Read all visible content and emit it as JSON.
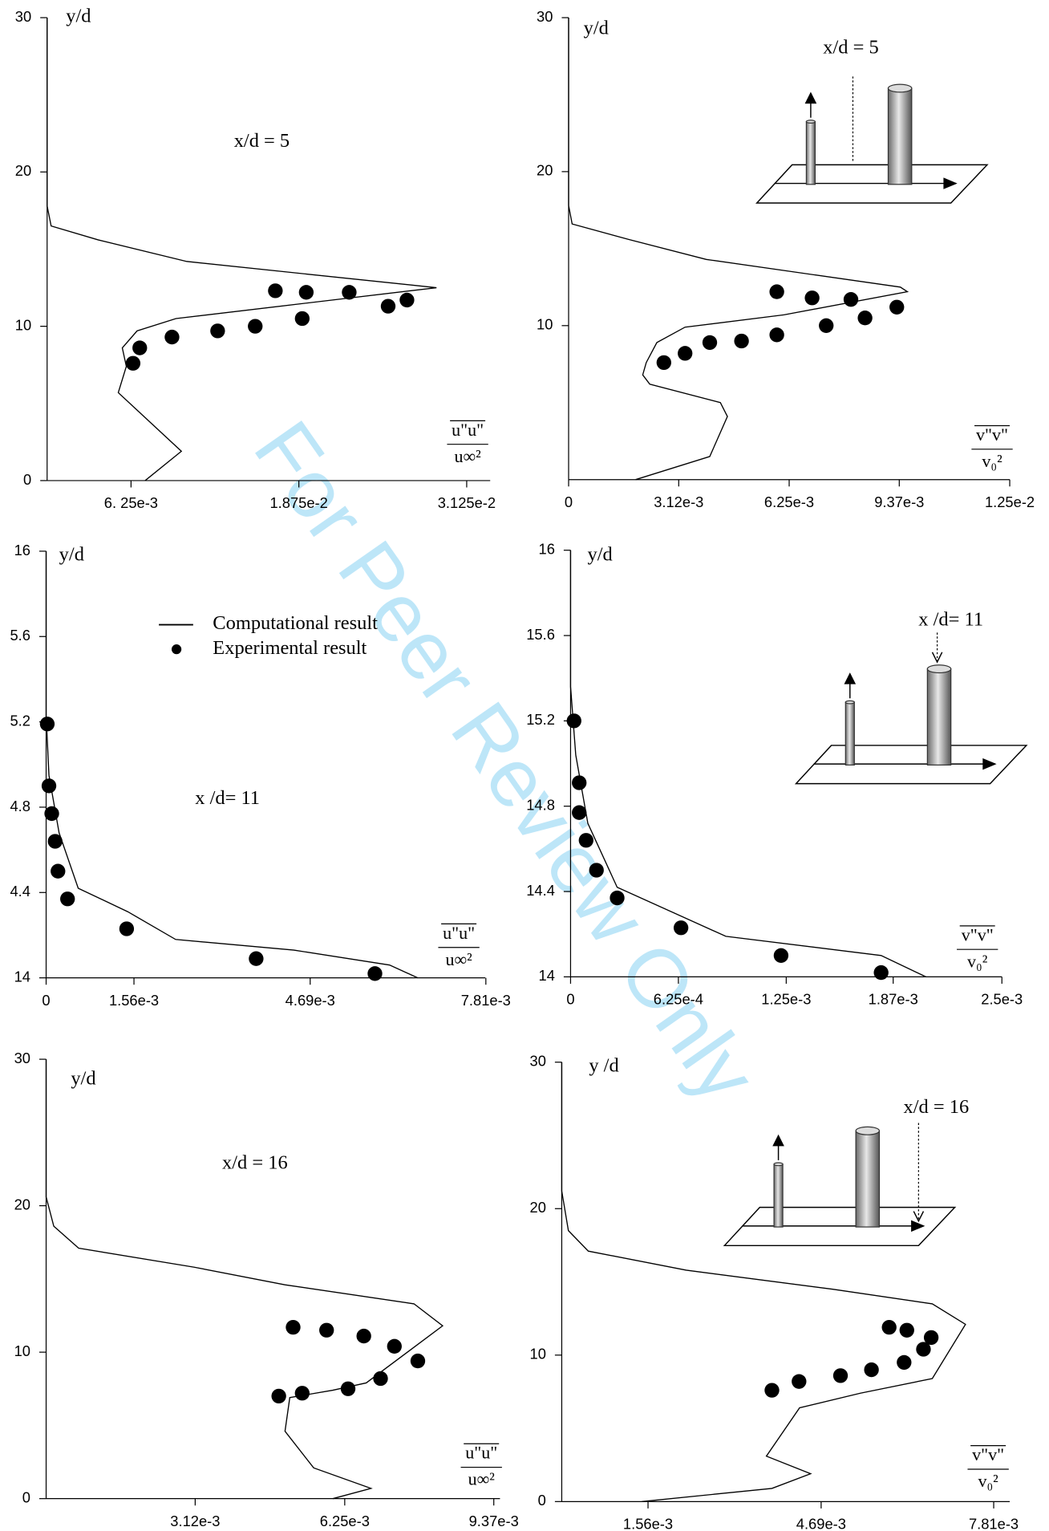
{
  "watermark": "For Peer Review Only",
  "chart_data": [
    {
      "type": "line",
      "annotation": "x/d = 5",
      "y_label": "y/d",
      "x_label": {
        "numerator": "u\"u\"",
        "denominator": "u∞²"
      },
      "xlim": [
        0,
        0.033
      ],
      "ylim": [
        0,
        30
      ],
      "xticks": [
        {
          "value": 0.00625,
          "label": "6. 25e-3"
        },
        {
          "value": 0.01875,
          "label": "1.875e-2"
        },
        {
          "value": 0.03125,
          "label": "3.125e-2"
        }
      ],
      "yticks": [
        0,
        10,
        20,
        30
      ],
      "series": [
        {
          "type": "line",
          "color": "#000000",
          "x": [
            0,
            0,
            0.0003,
            0.0038,
            0.0104,
            0.029,
            0.0096,
            0.0067,
            0.0056,
            0.0059,
            0.0053,
            0.01,
            0.0073
          ],
          "y": [
            30,
            17.8,
            16.5,
            15.6,
            14.2,
            12.5,
            10.5,
            9.7,
            8.6,
            7.4,
            5.7,
            1.9,
            0
          ]
        },
        {
          "type": "scatter",
          "color": "#000000",
          "x": [
            0.0064,
            0.0069,
            0.0093,
            0.0127,
            0.0155,
            0.019,
            0.017,
            0.0193,
            0.0225,
            0.0254,
            0.0268
          ],
          "y": [
            7.6,
            8.6,
            9.3,
            9.7,
            10,
            10.5,
            12.3,
            12.2,
            12.2,
            11.3,
            11.7
          ]
        }
      ]
    },
    {
      "type": "line",
      "annotation": "x/d = 5",
      "y_label": "y/d",
      "x_label": {
        "numerator": "v\"v\"",
        "denominator": "v₀²"
      },
      "xlim": [
        0,
        0.0125
      ],
      "ylim": [
        0,
        30
      ],
      "xticks": [
        0,
        {
          "value": 0.00312,
          "label": "3.12e-3"
        },
        {
          "value": 0.00625,
          "label": "6.25e-3"
        },
        {
          "value": 0.00937,
          "label": "9.37e-3"
        },
        {
          "value": 0.0125,
          "label": "1.25e-2"
        }
      ],
      "yticks": [
        10,
        20,
        30
      ],
      "series": [
        {
          "type": "line",
          "color": "#000000",
          "x": [
            0,
            0,
            0.0001,
            0.0017,
            0.0039,
            0.0094,
            0.0096,
            0.0061,
            0.0033,
            0.0025,
            0.0022,
            0.0021,
            0.0023,
            0.0043,
            0.0045,
            0.004,
            0.0019
          ],
          "y": [
            30,
            17.8,
            16.6,
            15.6,
            14.3,
            12.5,
            12.2,
            10.7,
            9.9,
            8.9,
            7.6,
            6.8,
            6.2,
            5,
            4.1,
            1.5,
            0
          ]
        },
        {
          "type": "scatter",
          "color": "#000000",
          "x": [
            0.0027,
            0.0033,
            0.004,
            0.0049,
            0.0059,
            0.0073,
            0.0084,
            0.0093,
            0.008,
            0.0069,
            0.0059
          ],
          "y": [
            7.6,
            8.2,
            8.9,
            9,
            9.4,
            10,
            10.5,
            11.2,
            11.7,
            11.8,
            12.2
          ]
        }
      ]
    },
    {
      "type": "line",
      "annotation": "x /d= 11",
      "y_label": "y/d",
      "x_label": {
        "numerator": "u\"u\"",
        "denominator": "u∞²"
      },
      "xlim": [
        0,
        0.0078
      ],
      "ylim": [
        14,
        16
      ],
      "xticks": [
        0,
        {
          "value": 0.00156,
          "label": "1.56e-3"
        },
        {
          "value": 0.00469,
          "label": "4.69e-3"
        },
        {
          "value": 0.00781,
          "label": "7.81e-3"
        }
      ],
      "yticks": [
        14,
        {
          "value": 14.4,
          "label": "4.4"
        },
        {
          "value": 14.8,
          "label": "4.8"
        },
        {
          "value": 15.2,
          "label": "5.2"
        },
        {
          "value": 15.6,
          "label": "5.6"
        },
        16
      ],
      "series": [
        {
          "name": "Computational result",
          "type": "line",
          "color": "#000000",
          "x": [
            0,
            0,
            5e-05,
            0.00023,
            0.00057,
            0.00145,
            0.0023,
            0.0044,
            0.0061,
            0.0066
          ],
          "y": [
            16,
            15.23,
            14.95,
            14.68,
            14.42,
            14.31,
            14.18,
            14.13,
            14.06,
            14
          ]
        },
        {
          "name": "Experimental result",
          "type": "scatter",
          "color": "#000000",
          "x": [
            2e-05,
            5e-05,
            0.0001,
            0.00016,
            0.00021,
            0.00038,
            0.00143,
            0.00373,
            0.00584
          ],
          "y": [
            15.19,
            14.9,
            14.77,
            14.64,
            14.5,
            14.37,
            14.23,
            14.09,
            14.02
          ]
        }
      ]
    },
    {
      "type": "line",
      "annotation": "x /d= 11",
      "y_label": "y/d",
      "x_label": {
        "numerator": "v\"v\"",
        "denominator": "v₀²"
      },
      "xlim": [
        0,
        0.0025
      ],
      "ylim": [
        14,
        16
      ],
      "xticks": [
        0,
        {
          "value": 0.000625,
          "label": "6.25e-4"
        },
        {
          "value": 0.00125,
          "label": "1.25e-3"
        },
        {
          "value": 0.00187,
          "label": "1.87e-3"
        },
        {
          "value": 0.0025,
          "label": "2.5e-3"
        }
      ],
      "yticks": [
        14,
        14.4,
        14.8,
        15.2,
        15.6,
        16
      ],
      "series": [
        {
          "type": "line",
          "color": "#000000",
          "x": [
            0,
            0,
            3e-05,
            0.0001,
            0.00027,
            0.0009,
            0.0018,
            0.00206
          ],
          "y": [
            16,
            15.36,
            15.04,
            14.72,
            14.42,
            14.19,
            14.1,
            14
          ]
        },
        {
          "type": "scatter",
          "color": "#000000",
          "x": [
            2e-05,
            5e-05,
            5e-05,
            9e-05,
            0.00015,
            0.00027,
            0.00064,
            0.00122,
            0.0018
          ],
          "y": [
            15.2,
            14.91,
            14.77,
            14.64,
            14.5,
            14.37,
            14.23,
            14.1,
            14.02
          ]
        }
      ]
    },
    {
      "type": "line",
      "annotation": "x/d = 16",
      "y_label": "y/d",
      "x_label": {
        "numerator": "u\"u\"",
        "denominator": "u∞²"
      },
      "xlim": [
        0,
        0.0095
      ],
      "ylim": [
        0,
        30
      ],
      "xticks": [
        {
          "value": 0.00312,
          "label": "3.12e-3"
        },
        {
          "value": 0.00625,
          "label": "6.25e-3"
        },
        {
          "value": 0.00937,
          "label": "9.37e-3"
        }
      ],
      "yticks": [
        0,
        10,
        20,
        30
      ],
      "series": [
        {
          "type": "line",
          "color": "#000000",
          "x": [
            0,
            0,
            0.00016,
            0.00068,
            0.0031,
            0.005,
            0.0077,
            0.0083,
            0.0067,
            0.006,
            0.0051,
            0.005,
            0.0056,
            0.0068,
            0.006
          ],
          "y": [
            30,
            20.6,
            18.6,
            17.1,
            15.8,
            14.6,
            13.3,
            11.8,
            7.9,
            7.4,
            6.9,
            4.6,
            2.1,
            0.7,
            0
          ]
        },
        {
          "type": "scatter",
          "color": "#000000",
          "x": [
            0.00517,
            0.00587,
            0.00665,
            0.00729,
            0.00778,
            0.007,
            0.00632,
            0.00536,
            0.00487
          ],
          "y": [
            11.7,
            11.5,
            11.1,
            10.4,
            9.4,
            8.2,
            7.5,
            7.2,
            7
          ]
        }
      ]
    },
    {
      "type": "line",
      "annotation": "x/d = 16",
      "y_label": "y /d",
      "x_label": {
        "numerator": "v\"v\"",
        "denominator": "v₀²"
      },
      "xlim": [
        0,
        0.0081
      ],
      "ylim": [
        0,
        30
      ],
      "xticks": [
        {
          "value": 0.00156,
          "label": "1.56e-3"
        },
        {
          "value": 0.00469,
          "label": "4.69e-3"
        },
        {
          "value": 0.00781,
          "label": "7.81e-3"
        }
      ],
      "yticks": [
        0,
        10,
        20,
        30
      ],
      "series": [
        {
          "type": "line",
          "color": "#000000",
          "x": [
            0,
            0,
            0.00012,
            0.00048,
            0.00225,
            0.0049,
            0.0067,
            0.0073,
            0.0067,
            0.0054,
            0.0043,
            0.0037,
            0.0045,
            0.0038,
            0.00145
          ],
          "y": [
            30,
            21.2,
            18.5,
            17.1,
            15.8,
            14.5,
            13.5,
            12.1,
            8.4,
            7.4,
            6.4,
            3.1,
            1.9,
            0.9,
            0
          ]
        },
        {
          "type": "scatter",
          "color": "#000000",
          "x": [
            0.0038,
            0.00429,
            0.00504,
            0.0056,
            0.00619,
            0.00654,
            0.00668,
            0.00624,
            0.00592
          ],
          "y": [
            7.6,
            8.2,
            8.6,
            9,
            9.5,
            10.4,
            11.2,
            11.7,
            11.9
          ]
        }
      ]
    }
  ]
}
